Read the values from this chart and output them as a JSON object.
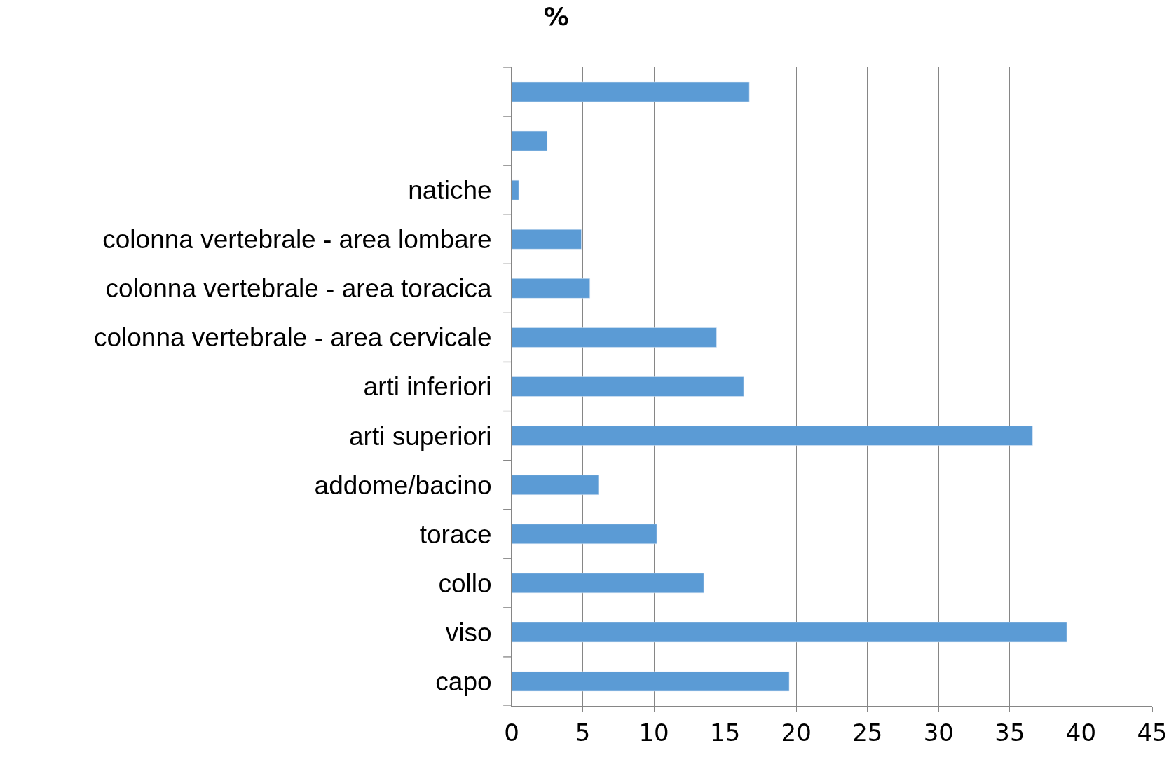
{
  "chart_data": {
    "type": "bar",
    "orientation": "horizontal",
    "title": "%",
    "categories": [
      null,
      null,
      "natiche",
      "colonna vertebrale - area lombare",
      "colonna vertebrale - area toracica",
      "colonna vertebrale - area cervicale",
      "arti inferiori",
      "arti superiori",
      "addome/bacino",
      "torace",
      "collo",
      "viso",
      "capo"
    ],
    "values": [
      16.7,
      2.5,
      0.5,
      4.9,
      5.5,
      14.4,
      16.3,
      36.6,
      6.1,
      10.2,
      13.5,
      39.0,
      19.5
    ],
    "color": "#5b9bd5",
    "xlim": [
      0,
      45
    ],
    "xticks": [
      0,
      5,
      10,
      15,
      20,
      25,
      30,
      35,
      40,
      45
    ],
    "grid": "x"
  }
}
